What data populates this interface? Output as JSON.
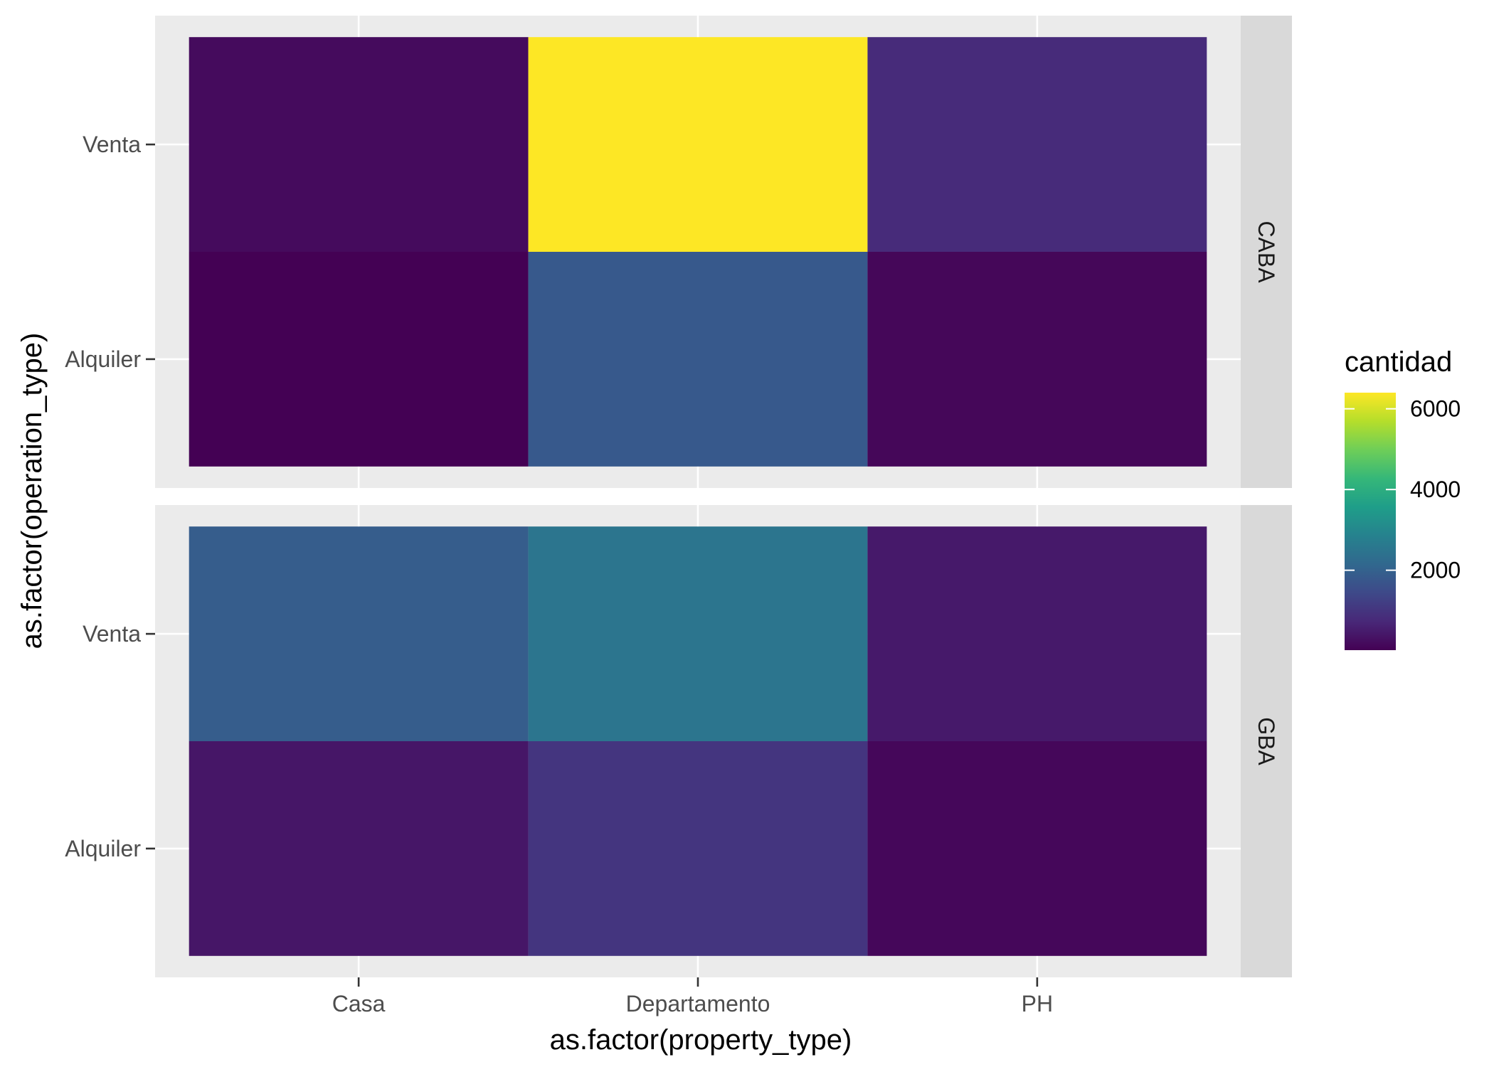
{
  "chart_data": {
    "type": "heatmap",
    "xlabel": "as.factor(property_type)",
    "ylabel": "as.factor(operation_type)",
    "x_categories": [
      "Casa",
      "Departamento",
      "PH"
    ],
    "y_categories": [
      "Alquiler",
      "Venta"
    ],
    "facets": [
      {
        "label": "CABA",
        "cells": [
          {
            "x": "Casa",
            "y": "Venta",
            "value": 200
          },
          {
            "x": "Departamento",
            "y": "Venta",
            "value": 6400
          },
          {
            "x": "PH",
            "y": "Venta",
            "value": 800
          },
          {
            "x": "Casa",
            "y": "Alquiler",
            "value": 20
          },
          {
            "x": "Departamento",
            "y": "Alquiler",
            "value": 1800
          },
          {
            "x": "PH",
            "y": "Alquiler",
            "value": 120
          }
        ]
      },
      {
        "label": "GBA",
        "cells": [
          {
            "x": "Casa",
            "y": "Venta",
            "value": 1900
          },
          {
            "x": "Departamento",
            "y": "Venta",
            "value": 2500
          },
          {
            "x": "PH",
            "y": "Venta",
            "value": 450
          },
          {
            "x": "Casa",
            "y": "Alquiler",
            "value": 400
          },
          {
            "x": "Departamento",
            "y": "Alquiler",
            "value": 1000
          },
          {
            "x": "PH",
            "y": "Alquiler",
            "value": 130
          }
        ]
      }
    ],
    "legend": {
      "title": "cantidad",
      "min": 20,
      "max": 6400,
      "ticks": [
        2000,
        4000,
        6000
      ],
      "tick_labels": [
        "2000",
        "4000",
        "6000"
      ],
      "palette": "viridis",
      "placement": "right"
    },
    "colors": {
      "panel_background": "#ebebeb",
      "strip_background": "#d9d9d9",
      "grid": "#ffffff"
    }
  }
}
